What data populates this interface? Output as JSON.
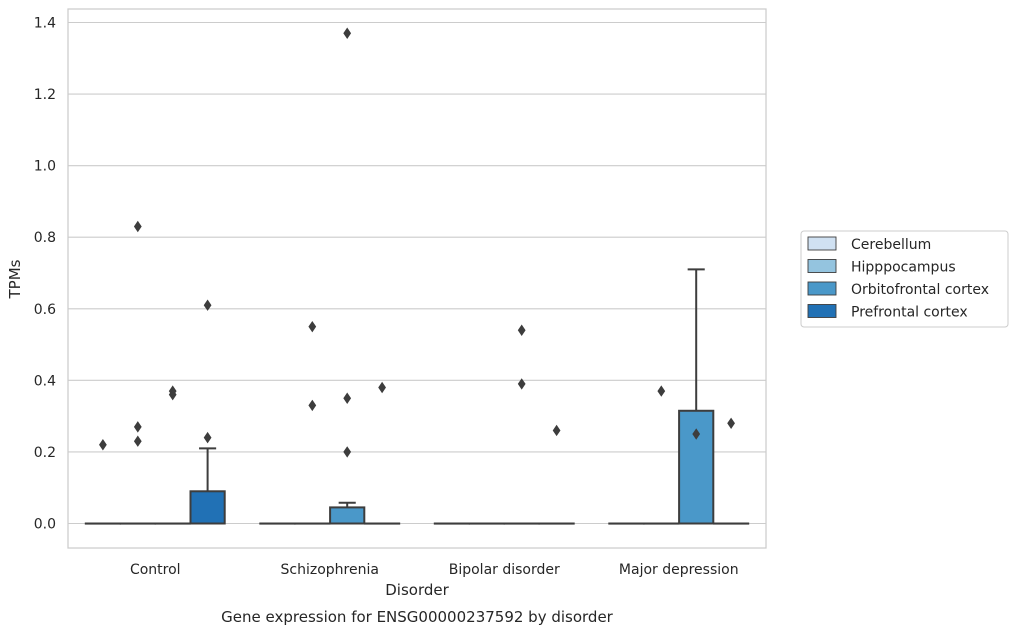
{
  "chart_data": {
    "type": "box",
    "title": "Gene expression for ENSG00000237592 by disorder",
    "xlabel": "Disorder",
    "ylabel": "TPMs",
    "categories": [
      "Control",
      "Schizophrenia",
      "Bipolar disorder",
      "Major depression"
    ],
    "ylim": [
      -0.068,
      1.44
    ],
    "yticks": [
      0.0,
      0.2,
      0.4,
      0.6,
      0.8,
      1.0,
      1.2,
      1.4
    ],
    "ytick_labels": [
      "0.0",
      "0.2",
      "0.4",
      "0.6",
      "0.8",
      "1.0",
      "1.2",
      "1.4"
    ],
    "grid": "horizontal",
    "legend_placement": "right",
    "series": [
      {
        "name": "Cerebellum",
        "color": "#d0e1f2",
        "boxes": [
          {
            "q1": 0,
            "median": 0,
            "q3": 0,
            "whisker_low": 0,
            "whisker_high": 0,
            "outliers": [
              0.22
            ]
          },
          {
            "q1": 0,
            "median": 0,
            "q3": 0,
            "whisker_low": 0,
            "whisker_high": 0,
            "outliers": []
          },
          {
            "q1": 0,
            "median": 0,
            "q3": 0,
            "whisker_low": 0,
            "whisker_high": 0,
            "outliers": []
          },
          {
            "q1": 0,
            "median": 0,
            "q3": 0,
            "whisker_low": 0,
            "whisker_high": 0,
            "outliers": []
          }
        ]
      },
      {
        "name": "Hipppocampus",
        "color": "#94c4df",
        "boxes": [
          {
            "q1": 0,
            "median": 0,
            "q3": 0,
            "whisker_low": 0,
            "whisker_high": 0,
            "outliers": [
              0.83,
              0.27,
              0.23
            ]
          },
          {
            "q1": 0,
            "median": 0,
            "q3": 0,
            "whisker_low": 0,
            "whisker_high": 0,
            "outliers": [
              0.55,
              0.33
            ]
          },
          {
            "q1": 0,
            "median": 0,
            "q3": 0,
            "whisker_low": 0,
            "whisker_high": 0,
            "outliers": []
          },
          {
            "q1": 0,
            "median": 0,
            "q3": 0,
            "whisker_low": 0,
            "whisker_high": 0,
            "outliers": [
              0.37
            ]
          }
        ]
      },
      {
        "name": "Orbitofrontal cortex",
        "color": "#4a98c9",
        "boxes": [
          {
            "q1": 0,
            "median": 0,
            "q3": 0,
            "whisker_low": 0,
            "whisker_high": 0,
            "outliers": [
              0.37,
              0.36
            ]
          },
          {
            "q1": 0,
            "median": 0,
            "q3": 0.045,
            "whisker_low": 0,
            "whisker_high": 0.058,
            "outliers": [
              1.37,
              0.35,
              0.2
            ]
          },
          {
            "q1": 0,
            "median": 0,
            "q3": 0,
            "whisker_low": 0,
            "whisker_high": 0,
            "outliers": [
              0.54,
              0.39
            ]
          },
          {
            "q1": 0,
            "median": 0,
            "q3": 0.315,
            "whisker_low": 0,
            "whisker_high": 0.71,
            "outliers": [
              0.25
            ]
          }
        ]
      },
      {
        "name": "Prefrontal cortex",
        "color": "#2171b5",
        "boxes": [
          {
            "q1": 0,
            "median": 0,
            "q3": 0.09,
            "whisker_low": 0,
            "whisker_high": 0.21,
            "outliers": [
              0.61,
              0.24
            ]
          },
          {
            "q1": 0,
            "median": 0,
            "q3": 0,
            "whisker_low": 0,
            "whisker_high": 0,
            "outliers": [
              0.38
            ]
          },
          {
            "q1": 0,
            "median": 0,
            "q3": 0,
            "whisker_low": 0,
            "whisker_high": 0,
            "outliers": [
              0.26
            ]
          },
          {
            "q1": 0,
            "median": 0,
            "q3": 0,
            "whisker_low": 0,
            "whisker_high": 0,
            "outliers": [
              0.28
            ]
          }
        ]
      }
    ]
  }
}
